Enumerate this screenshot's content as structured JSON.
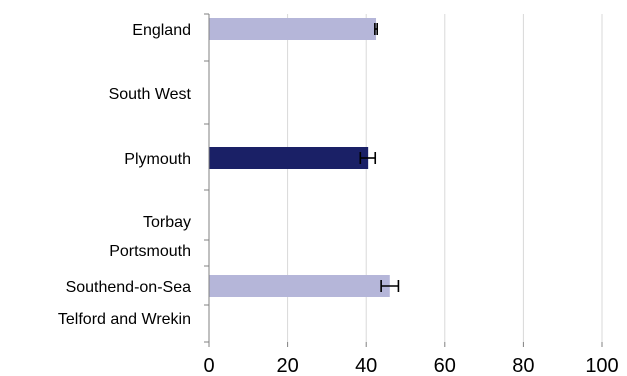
{
  "chart_data": {
    "type": "bar",
    "orientation": "horizontal",
    "categories": [
      "England",
      "South West",
      "Plymouth",
      "Torbay",
      "Portsmouth",
      "Southend-on-Sea",
      "Telford and Wrekin"
    ],
    "values": [
      42.5,
      0,
      40.5,
      0,
      0,
      46,
      0
    ],
    "error_low": [
      42.2,
      null,
      38.5,
      null,
      null,
      43.8,
      null
    ],
    "error_high": [
      42.8,
      null,
      42.3,
      null,
      null,
      48.2,
      null
    ],
    "bar_colors": [
      "#b5b6d9",
      "#b5b6d9",
      "#1a2066",
      "#b5b6d9",
      "#b5b6d9",
      "#b5b6d9",
      "#b5b6d9"
    ],
    "xlim": [
      0,
      100
    ],
    "xticks": [
      "0",
      "20",
      "40",
      "60",
      "80",
      "100"
    ],
    "grid": true,
    "title": "",
    "xlabel": "",
    "ylabel": ""
  }
}
